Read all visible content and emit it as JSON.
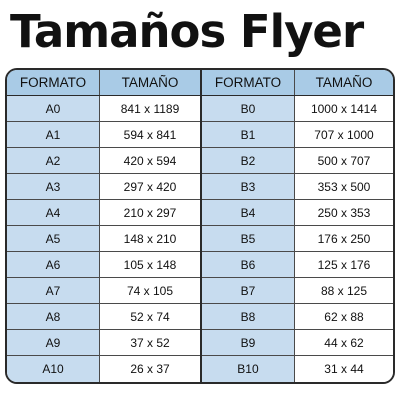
{
  "title": "Tamaños Flyer",
  "table": {
    "left": {
      "header": {
        "format": "FORMATO",
        "size": "TAMAÑO"
      },
      "rows": [
        {
          "format": "A0",
          "size": "841 x 1189"
        },
        {
          "format": "A1",
          "size": "594 x 841"
        },
        {
          "format": "A2",
          "size": "420 x 594"
        },
        {
          "format": "A3",
          "size": "297 x 420"
        },
        {
          "format": "A4",
          "size": "210 x 297"
        },
        {
          "format": "A5",
          "size": "148 x 210"
        },
        {
          "format": "A6",
          "size": "105 x 148"
        },
        {
          "format": "A7",
          "size": "74 x 105"
        },
        {
          "format": "A8",
          "size": "52 x 74"
        },
        {
          "format": "A9",
          "size": "37 x 52"
        },
        {
          "format": "A10",
          "size": "26 x 37"
        }
      ]
    },
    "right": {
      "header": {
        "format": "FORMATO",
        "size": "TAMAÑO"
      },
      "rows": [
        {
          "format": "B0",
          "size": "1000 x 1414"
        },
        {
          "format": "B1",
          "size": "707 x 1000"
        },
        {
          "format": "B2",
          "size": "500 x 707"
        },
        {
          "format": "B3",
          "size": "353 x 500"
        },
        {
          "format": "B4",
          "size": "250 x 353"
        },
        {
          "format": "B5",
          "size": "176 x 250"
        },
        {
          "format": "B6",
          "size": "125 x 176"
        },
        {
          "format": "B7",
          "size": "88 x 125"
        },
        {
          "format": "B8",
          "size": "62 x 88"
        },
        {
          "format": "B9",
          "size": "44 x 62"
        },
        {
          "format": "B10",
          "size": "31 x 44"
        }
      ]
    }
  },
  "colors": {
    "header_bg": "#a9cbe6",
    "format_cell_bg": "#c7dcef",
    "border": "#2a2a2a"
  }
}
